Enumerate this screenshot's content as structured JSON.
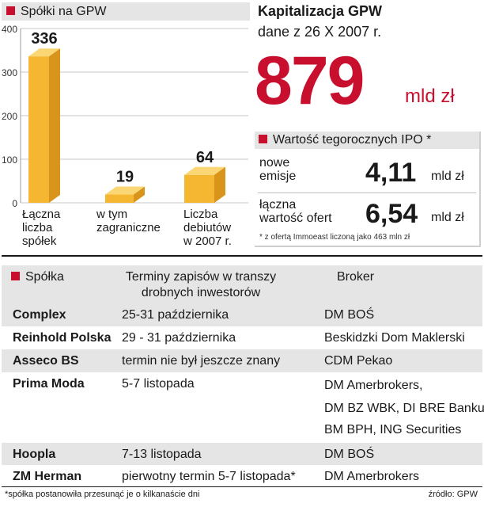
{
  "chart_data": {
    "type": "bar",
    "title": "Spółki na GPW",
    "categories": [
      [
        "Łączna",
        "liczba",
        "spółek"
      ],
      [
        "w tym",
        "zagraniczne"
      ],
      [
        "Liczba",
        "debiutów",
        "w 2007 r."
      ]
    ],
    "values": [
      336,
      19,
      64
    ],
    "value_labels": [
      "336",
      "19",
      "64"
    ],
    "yticks": [
      "400",
      "300",
      "200",
      "100",
      "0"
    ],
    "ylim": [
      0,
      400
    ],
    "grid": true
  },
  "capitalization": {
    "title": "Kapitalizacja GPW",
    "subtitle": "dane z 26 X 2007 r.",
    "value": "879",
    "unit": "mld zł"
  },
  "ipo": {
    "title": "Wartość tegorocznych IPO",
    "title_mark": "*",
    "rows": [
      {
        "label": [
          "nowe",
          "emisje"
        ],
        "value": "4,11",
        "unit": "mld zł"
      },
      {
        "label": [
          "łączna",
          "wartość ofert"
        ],
        "value": "6,54",
        "unit": "mld zł"
      }
    ],
    "note": "* z ofertą Immoeast liczoną jako 463 mln zł"
  },
  "table": {
    "headers": {
      "company": "Spółka",
      "terms": [
        "Terminy zapisów w transzy",
        "drobnych inwestorów"
      ],
      "broker": "Broker"
    },
    "rows": [
      {
        "company": "Complex",
        "terms": "25-31 października",
        "brokers": [
          "DM BOŚ"
        ]
      },
      {
        "company": "Reinhold Polska",
        "terms": "29 - 31 października",
        "brokers": [
          "Beskidzki Dom Maklerski"
        ]
      },
      {
        "company": "Asseco BS",
        "terms": "termin nie był jeszcze znany",
        "brokers": [
          "CDM Pekao"
        ]
      },
      {
        "company": "Prima Moda",
        "terms": "5-7 listopada",
        "brokers": [
          "DM Amerbrokers,",
          "DM BZ WBK, DI BRE Banku,",
          "BM BPH, ING Securities"
        ]
      },
      {
        "company": "Hoopla",
        "terms": "7-13 listopada",
        "brokers": [
          "DM BOŚ"
        ]
      },
      {
        "company": "ZM Herman",
        "terms": "pierwotny termin 5-7 listopada*",
        "brokers": [
          "DM Amerbrokers"
        ]
      }
    ],
    "footnote": "*spółka postanowiła przesunąć je o kilkanaście dni",
    "source": "źródło: GPW"
  },
  "colors": {
    "accent": "#c8102e",
    "bar_front": "#f5b731",
    "bar_top": "#fbd674",
    "bar_side": "#d9941c",
    "panel": "#e5e5e5"
  }
}
